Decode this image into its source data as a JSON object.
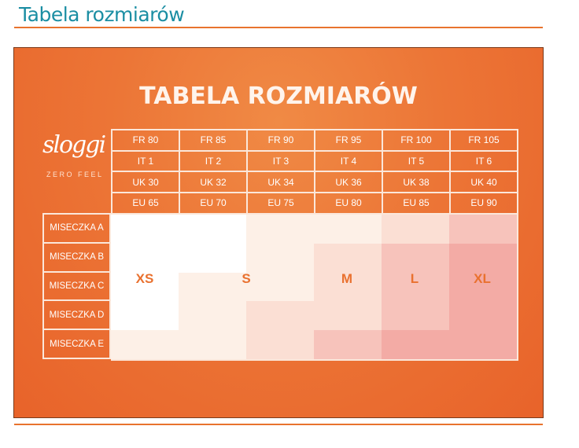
{
  "page": {
    "title": "Tabela rozmiarów"
  },
  "image": {
    "title": "TABELA ROZMIARÓW",
    "logo": "sloggi",
    "logo_subtitle": "ZERO FEEL",
    "header_rows": [
      [
        "FR 80",
        "FR 85",
        "FR 90",
        "FR 95",
        "FR 100",
        "FR 105"
      ],
      [
        "IT 1",
        "IT 2",
        "IT 3",
        "IT 4",
        "IT 5",
        "IT 6"
      ],
      [
        "UK 30",
        "UK 32",
        "UK 34",
        "UK 36",
        "UK 38",
        "UK 40"
      ],
      [
        "EU 65",
        "EU 70",
        "EU 75",
        "EU 80",
        "EU 85",
        "EU 90"
      ]
    ],
    "cup_rows": [
      "MISECZKA A",
      "MISECZKA B",
      "MISECZKA C",
      "MISECZKA D",
      "MISECZKA E"
    ],
    "sizes": [
      "XS",
      "S",
      "M",
      "L",
      "XL"
    ],
    "shade_levels": [
      [
        0,
        0,
        1,
        1,
        2,
        3
      ],
      [
        0,
        0,
        1,
        2,
        3,
        4
      ],
      [
        0,
        1,
        1,
        2,
        3,
        4
      ],
      [
        0,
        1,
        2,
        2,
        3,
        4
      ],
      [
        1,
        1,
        2,
        3,
        4,
        4
      ]
    ],
    "shade_colors": [
      "#ffffff",
      "#fdf0e7",
      "#fbdfd4",
      "#f7c3bb",
      "#f3aba5"
    ],
    "colors": {
      "accent": "#e8732e",
      "title": "#1b8ea3",
      "size_label": "#e9712f"
    }
  }
}
